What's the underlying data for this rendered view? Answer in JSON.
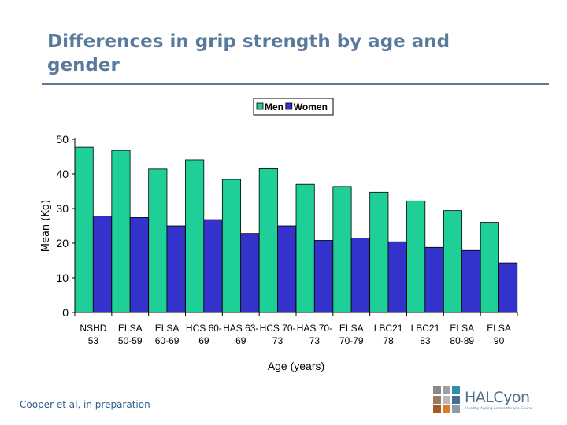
{
  "slide": {
    "title": "Differences in grip strength by age and gender",
    "citation": "Cooper et al, in preparation"
  },
  "logo": {
    "name": "HALCyon",
    "tagline": "Healthy Ageing across the Life Course",
    "tile_colors": [
      "#8a8a8a",
      "#a0a0a0",
      "#2e8fa8",
      "#9c7a60",
      "#b8b8b8",
      "#4a6e8a",
      "#a05a2c",
      "#e07a28",
      "#8a9aa8"
    ]
  },
  "chart_data": {
    "type": "bar",
    "categories": [
      [
        "NSHD",
        "53"
      ],
      [
        "ELSA",
        "50-59"
      ],
      [
        "ELSA",
        "60-69"
      ],
      [
        "HCS 60-",
        "69"
      ],
      [
        "HAS 63-",
        "69"
      ],
      [
        "HCS 70-",
        "73"
      ],
      [
        "HAS 70-",
        "73"
      ],
      [
        "ELSA",
        "70-79"
      ],
      [
        "LBC21",
        "78"
      ],
      [
        "LBC21",
        "83"
      ],
      [
        "ELSA",
        "80-89"
      ],
      [
        "ELSA",
        "90"
      ]
    ],
    "series": [
      {
        "name": "Men",
        "color": "#1fcf98",
        "values": [
          47.7,
          46.8,
          41.4,
          44.1,
          38.4,
          41.5,
          37.0,
          36.4,
          34.7,
          32.2,
          29.4,
          26.0
        ]
      },
      {
        "name": "Women",
        "color": "#3333cc",
        "values": [
          27.8,
          27.4,
          25.0,
          26.8,
          22.8,
          25.0,
          20.8,
          21.5,
          20.4,
          18.8,
          17.9,
          14.3
        ]
      }
    ],
    "xlabel": "Age (years)",
    "ylabel": "Mean (Kg)",
    "ylim": [
      0,
      50
    ],
    "yticks": [
      0,
      10,
      20,
      30,
      40,
      50
    ],
    "legend_position": "top-center",
    "grid": false
  }
}
